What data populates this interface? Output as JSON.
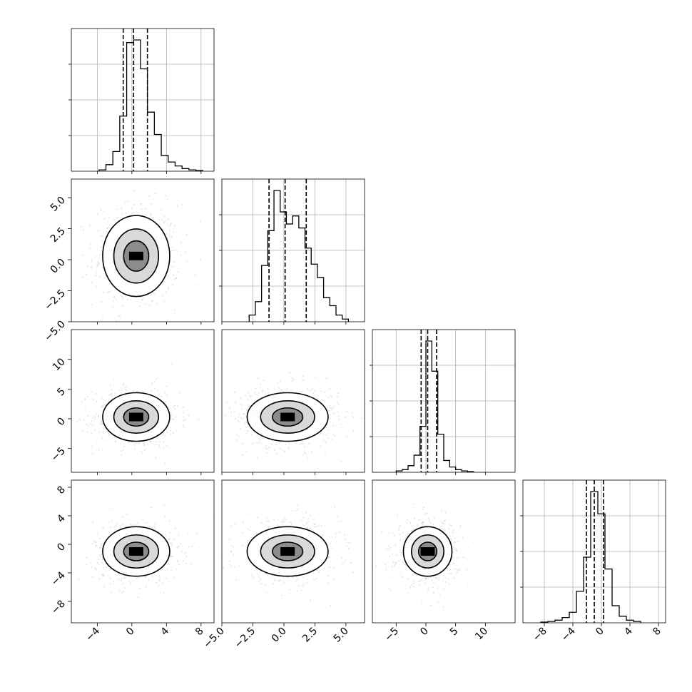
{
  "chart_data": {
    "type": "corner",
    "parameters": 4,
    "axes": [
      {
        "index": 0,
        "range": [
          -7,
          9.5
        ],
        "ticks": [
          -4,
          0,
          4,
          8
        ],
        "tick_labels": [
          "−4",
          "0",
          "4",
          "8"
        ],
        "mean": 0.5,
        "sd": 1.9,
        "quantiles": [
          -1.0,
          0.2,
          1.8
        ]
      },
      {
        "index": 1,
        "range": [
          -5,
          6.5
        ],
        "ticks": [
          -5.0,
          -2.5,
          0.0,
          2.5,
          5.0
        ],
        "tick_labels": [
          "−5.0",
          "−2.5",
          "0.0",
          "2.5",
          "5.0"
        ],
        "mean": 0.3,
        "sd": 1.6,
        "quantiles": [
          -1.2,
          0.1,
          1.8
        ]
      },
      {
        "index": 2,
        "range": [
          -9,
          15
        ],
        "ticks": [
          -5,
          0,
          5,
          10
        ],
        "tick_labels": [
          "−5",
          "0",
          "5",
          "10"
        ],
        "mean": 0.3,
        "sd": 2.0,
        "quantiles": [
          -0.8,
          0.3,
          1.8
        ]
      },
      {
        "index": 3,
        "range": [
          -11,
          9
        ],
        "ticks": [
          -8,
          -4,
          0,
          4,
          8
        ],
        "tick_labels": [
          "−8",
          "−4",
          "0",
          "4",
          "8"
        ],
        "mean": -1.0,
        "sd": 1.7,
        "quantiles": [
          -2.1,
          -1.0,
          0.3
        ]
      }
    ],
    "histograms": [
      {
        "param": 0,
        "bins": [
          -3.8,
          -3.0,
          -2.2,
          -1.4,
          -0.6,
          0.2,
          1.0,
          1.8,
          2.6,
          3.4,
          4.2,
          5.0,
          5.8,
          6.6,
          7.4,
          8.2
        ],
        "counts": [
          0.01,
          0.05,
          0.15,
          0.42,
          0.98,
          1.0,
          0.78,
          0.45,
          0.28,
          0.12,
          0.07,
          0.04,
          0.02,
          0.01,
          0.005
        ]
      },
      {
        "param": 1,
        "bins": [
          -2.8,
          -2.3,
          -1.8,
          -1.3,
          -0.8,
          -0.3,
          0.2,
          0.7,
          1.2,
          1.7,
          2.2,
          2.7,
          3.2,
          3.7,
          4.2,
          4.7,
          5.2
        ],
        "counts": [
          0.05,
          0.15,
          0.42,
          0.68,
          0.98,
          0.82,
          0.73,
          0.79,
          0.7,
          0.55,
          0.43,
          0.33,
          0.18,
          0.12,
          0.05,
          0.02
        ]
      },
      {
        "param": 2,
        "bins": [
          -5.0,
          -4.0,
          -3.0,
          -2.0,
          -1.0,
          0.0,
          1.0,
          2.0,
          3.0,
          4.0,
          5.0,
          6.0,
          7.0,
          8.0
        ],
        "counts": [
          0.01,
          0.02,
          0.05,
          0.13,
          0.35,
          1.0,
          0.77,
          0.29,
          0.09,
          0.04,
          0.02,
          0.01,
          0.005
        ]
      },
      {
        "param": 3,
        "bins": [
          -8.5,
          -7.5,
          -6.5,
          -5.5,
          -4.5,
          -3.5,
          -2.5,
          -1.5,
          -0.5,
          0.5,
          1.5,
          2.5,
          3.5,
          4.5,
          5.5
        ],
        "counts": [
          0.005,
          0.01,
          0.02,
          0.04,
          0.08,
          0.24,
          0.5,
          1.0,
          0.83,
          0.41,
          0.13,
          0.05,
          0.02,
          0.01
        ]
      }
    ],
    "contour_levels": [
      "1-sigma",
      "2-sigma",
      "3-sigma"
    ],
    "grid": true,
    "color": "#000000"
  }
}
